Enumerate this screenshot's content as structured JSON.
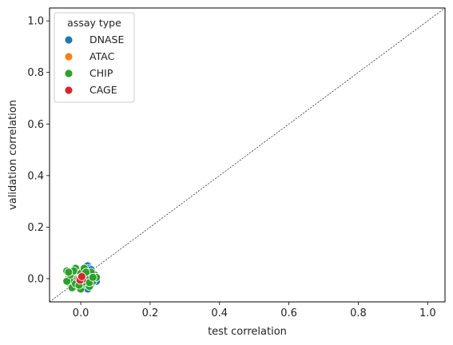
{
  "chart_data": {
    "type": "scatter",
    "title": "",
    "xlabel": "test correlation",
    "ylabel": "validation correlation",
    "xlim": [
      -0.09,
      1.05
    ],
    "ylim": [
      -0.09,
      1.05
    ],
    "xticks": [
      0.0,
      0.2,
      0.4,
      0.6,
      0.8,
      1.0
    ],
    "yticks": [
      0.0,
      0.2,
      0.4,
      0.6,
      0.8,
      1.0
    ],
    "grid": false,
    "diagonal_reference_line": true,
    "legend": {
      "title": "assay type",
      "placement": "top-left"
    },
    "series": [
      {
        "name": "DNASE",
        "color": "#1f77b4",
        "points": [
          [
            0.02,
            0.05
          ],
          [
            0.025,
            0.04
          ],
          [
            0.04,
            0.0
          ],
          [
            0.045,
            -0.01
          ],
          [
            0.01,
            0.03
          ],
          [
            0.035,
            0.02
          ],
          [
            0.03,
            -0.02
          ],
          [
            0.015,
            0.01
          ],
          [
            0.005,
            -0.03
          ],
          [
            0.02,
            -0.04
          ],
          [
            0.04,
            0.01
          ],
          [
            0.03,
            0.035
          ]
        ]
      },
      {
        "name": "ATAC",
        "color": "#ff7f0e",
        "points": [
          [
            0.0,
            0.01
          ],
          [
            0.005,
            -0.005
          ],
          [
            -0.005,
            0.0
          ],
          [
            0.01,
            0.005
          ]
        ]
      },
      {
        "name": "CHIP",
        "color": "#2ca02c",
        "points": [
          [
            -0.04,
            0.03
          ],
          [
            -0.035,
            0.0
          ],
          [
            -0.03,
            -0.02
          ],
          [
            -0.025,
            0.02
          ],
          [
            -0.02,
            -0.01
          ],
          [
            -0.015,
            0.04
          ],
          [
            -0.01,
            -0.03
          ],
          [
            -0.005,
            0.02
          ],
          [
            0.0,
            -0.04
          ],
          [
            0.005,
            0.03
          ],
          [
            0.01,
            -0.02
          ],
          [
            0.015,
            0.0
          ],
          [
            0.02,
            0.02
          ],
          [
            0.025,
            -0.03
          ],
          [
            0.03,
            0.01
          ],
          [
            0.035,
            -0.01
          ],
          [
            0.04,
            0.015
          ],
          [
            0.045,
            0.005
          ],
          [
            -0.04,
            -0.01
          ],
          [
            -0.03,
            0.015
          ],
          [
            -0.02,
            0.03
          ],
          [
            -0.01,
            0.0
          ],
          [
            0.0,
            0.02
          ],
          [
            0.01,
            0.04
          ],
          [
            0.02,
            -0.005
          ],
          [
            0.03,
            0.025
          ],
          [
            -0.025,
            -0.035
          ],
          [
            -0.015,
            -0.02
          ],
          [
            0.005,
            -0.015
          ],
          [
            0.015,
            0.025
          ],
          [
            -0.035,
            0.025
          ],
          [
            0.025,
            -0.015
          ],
          [
            -0.005,
            -0.025
          ],
          [
            0.035,
            0.005
          ]
        ]
      },
      {
        "name": "CAGE",
        "color": "#d62728",
        "points": [
          [
            -0.005,
            0.0
          ],
          [
            0.0,
            0.005
          ],
          [
            0.005,
            -0.003
          ],
          [
            -0.002,
            -0.006
          ],
          [
            0.003,
            0.008
          ]
        ]
      }
    ]
  }
}
